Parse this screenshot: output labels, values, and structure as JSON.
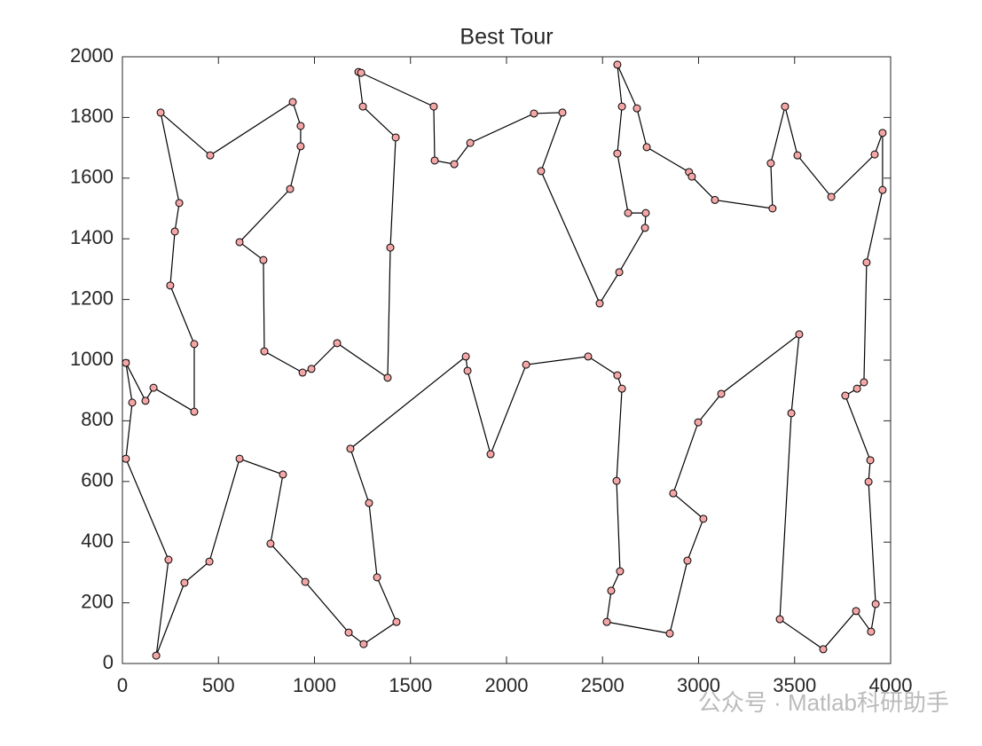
{
  "chart_data": {
    "type": "line",
    "title": "Best Tour",
    "xlim": [
      0,
      4000
    ],
    "xticks": [
      0,
      500,
      1000,
      1500,
      2000,
      2500,
      3000,
      3500,
      4000
    ],
    "ylim": [
      0,
      2000
    ],
    "yticks": [
      0,
      200,
      400,
      600,
      800,
      1000,
      1200,
      1400,
      1600,
      1800,
      2000
    ],
    "grid": false,
    "closed": true,
    "marker_color": "#f4a6a6",
    "x": [
      18,
      51,
      18,
      120,
      162,
      374,
      374,
      249,
      273,
      296,
      199,
      457,
      887,
      928,
      928,
      873,
      610,
      734,
      739,
      938,
      984,
      1118,
      1381,
      1395,
      1423,
      1252,
      1229,
      1243,
      1621,
      1626,
      1728,
      1811,
      2143,
      2291,
      2180,
      2485,
      2587,
      2721,
      2725,
      2633,
      2577,
      2601,
      2577,
      2679,
      2730,
      2950,
      2965,
      3085,
      3385,
      3376,
      3450,
      3515,
      3691,
      3917,
      3958,
      3958,
      3875,
      3861,
      3825,
      3764,
      3894,
      3885,
      3922,
      3898,
      3820,
      3649,
      3423,
      3483,
      3524,
      3118,
      2998,
      2868,
      3025,
      2942,
      2850,
      2522,
      2545,
      2591,
      2573,
      2601,
      2577,
      2425,
      2102,
      1917,
      1797,
      1788,
      1187,
      1284,
      1326,
      1427,
      1256,
      1178,
      952,
      771,
      836,
      610,
      453,
      323,
      176,
      240
    ],
    "series": [
      {
        "color": "#000000",
        "values": [
          675,
          860,
          991,
          866,
          909,
          830,
          1053,
          1246,
          1424,
          1518,
          1816,
          1675,
          1851,
          1772,
          1705,
          1564,
          1389,
          1330,
          1029,
          959,
          971,
          1056,
          942,
          1371,
          1734,
          1836,
          1950,
          1947,
          1836,
          1658,
          1646,
          1716,
          1813,
          1816,
          1623,
          1187,
          1290,
          1436,
          1485,
          1485,
          1681,
          1836,
          1974,
          1830,
          1702,
          1620,
          1605,
          1528,
          1500,
          1649,
          1836,
          1675,
          1538,
          1678,
          1749,
          1561,
          1322,
          927,
          906,
          883,
          670,
          599,
          196,
          105,
          173,
          47,
          146,
          825,
          1085,
          889,
          795,
          561,
          477,
          339,
          99,
          137,
          240,
          304,
          602,
          906,
          950,
          1012,
          985,
          690,
          965,
          1012,
          708,
          529,
          284,
          137,
          64,
          102,
          269,
          395,
          623,
          675,
          336,
          266,
          26,
          342
        ]
      }
    ],
    "watermark": "公众号 · Matlab科研助手"
  }
}
